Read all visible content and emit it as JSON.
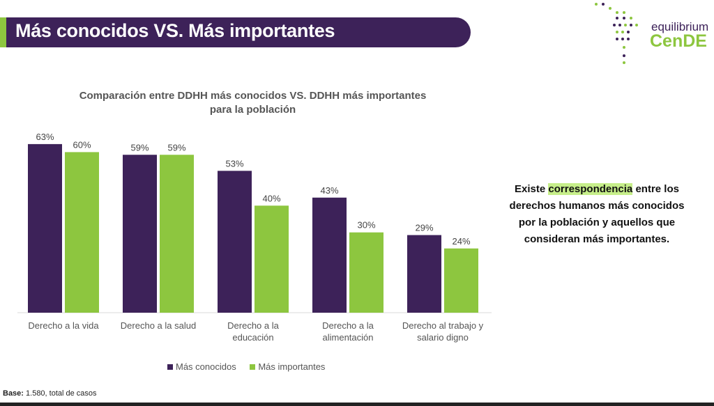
{
  "header": {
    "title": "Más conocidos VS. Más importantes"
  },
  "logo": {
    "line1": "equilibrium",
    "line2": "CenDE"
  },
  "chart_data": {
    "type": "bar",
    "title": "Comparación entre DDHH más conocidos VS. DDHH más importantes para la población",
    "categories": [
      "Derecho a la vida",
      "Derecho a la salud",
      "Derecho a la educación",
      "Derecho a la alimentación",
      "Derecho al trabajo y salario digno"
    ],
    "series": [
      {
        "name": "Más conocidos",
        "values": [
          63,
          59,
          53,
          43,
          29
        ],
        "color": "#3d2259"
      },
      {
        "name": "Más importantes",
        "values": [
          60,
          59,
          40,
          30,
          24
        ],
        "color": "#8dc63f"
      }
    ],
    "unit": "%",
    "ylim": [
      0,
      70
    ],
    "grid": false,
    "legend": "bottom"
  },
  "note": {
    "before": "Existe ",
    "highlight": "correspondencia",
    "after": " entre los derechos humanos más conocidos por la población y aquellos que consideran más importantes."
  },
  "footer": {
    "base_label": "Base:",
    "base_text": " 1.580, total de casos"
  }
}
